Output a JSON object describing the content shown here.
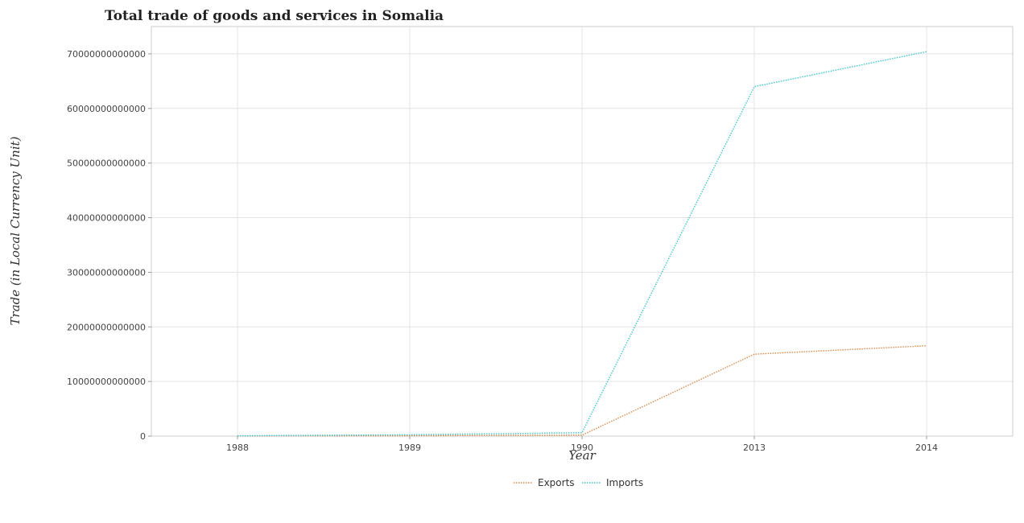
{
  "chart_data": {
    "type": "line",
    "title": "Total trade of goods and services in Somalia",
    "xlabel": "Year",
    "ylabel": "Trade (in Local Currency Unit)",
    "categories": [
      "1988",
      "1989",
      "1990",
      "2013",
      "2014"
    ],
    "ylim": [
      0,
      75000000000000
    ],
    "yticks": [
      0,
      10000000000000,
      20000000000000,
      30000000000000,
      40000000000000,
      50000000000000,
      60000000000000,
      70000000000000
    ],
    "ytick_labels": [
      "0",
      "10000000000000",
      "20000000000000",
      "30000000000000",
      "40000000000000",
      "50000000000000",
      "60000000000000",
      "70000000000000"
    ],
    "grid": true,
    "legend_position": "bottom-center",
    "series": [
      {
        "name": "Exports",
        "color": "#d98b4a",
        "values": [
          30000000000,
          80000000000,
          180000000000,
          15000000000000,
          16550000000000
        ]
      },
      {
        "name": "Imports",
        "color": "#3ec5c8",
        "values": [
          60000000000,
          250000000000,
          620000000000,
          64000000000000,
          70400000000000
        ]
      }
    ]
  }
}
